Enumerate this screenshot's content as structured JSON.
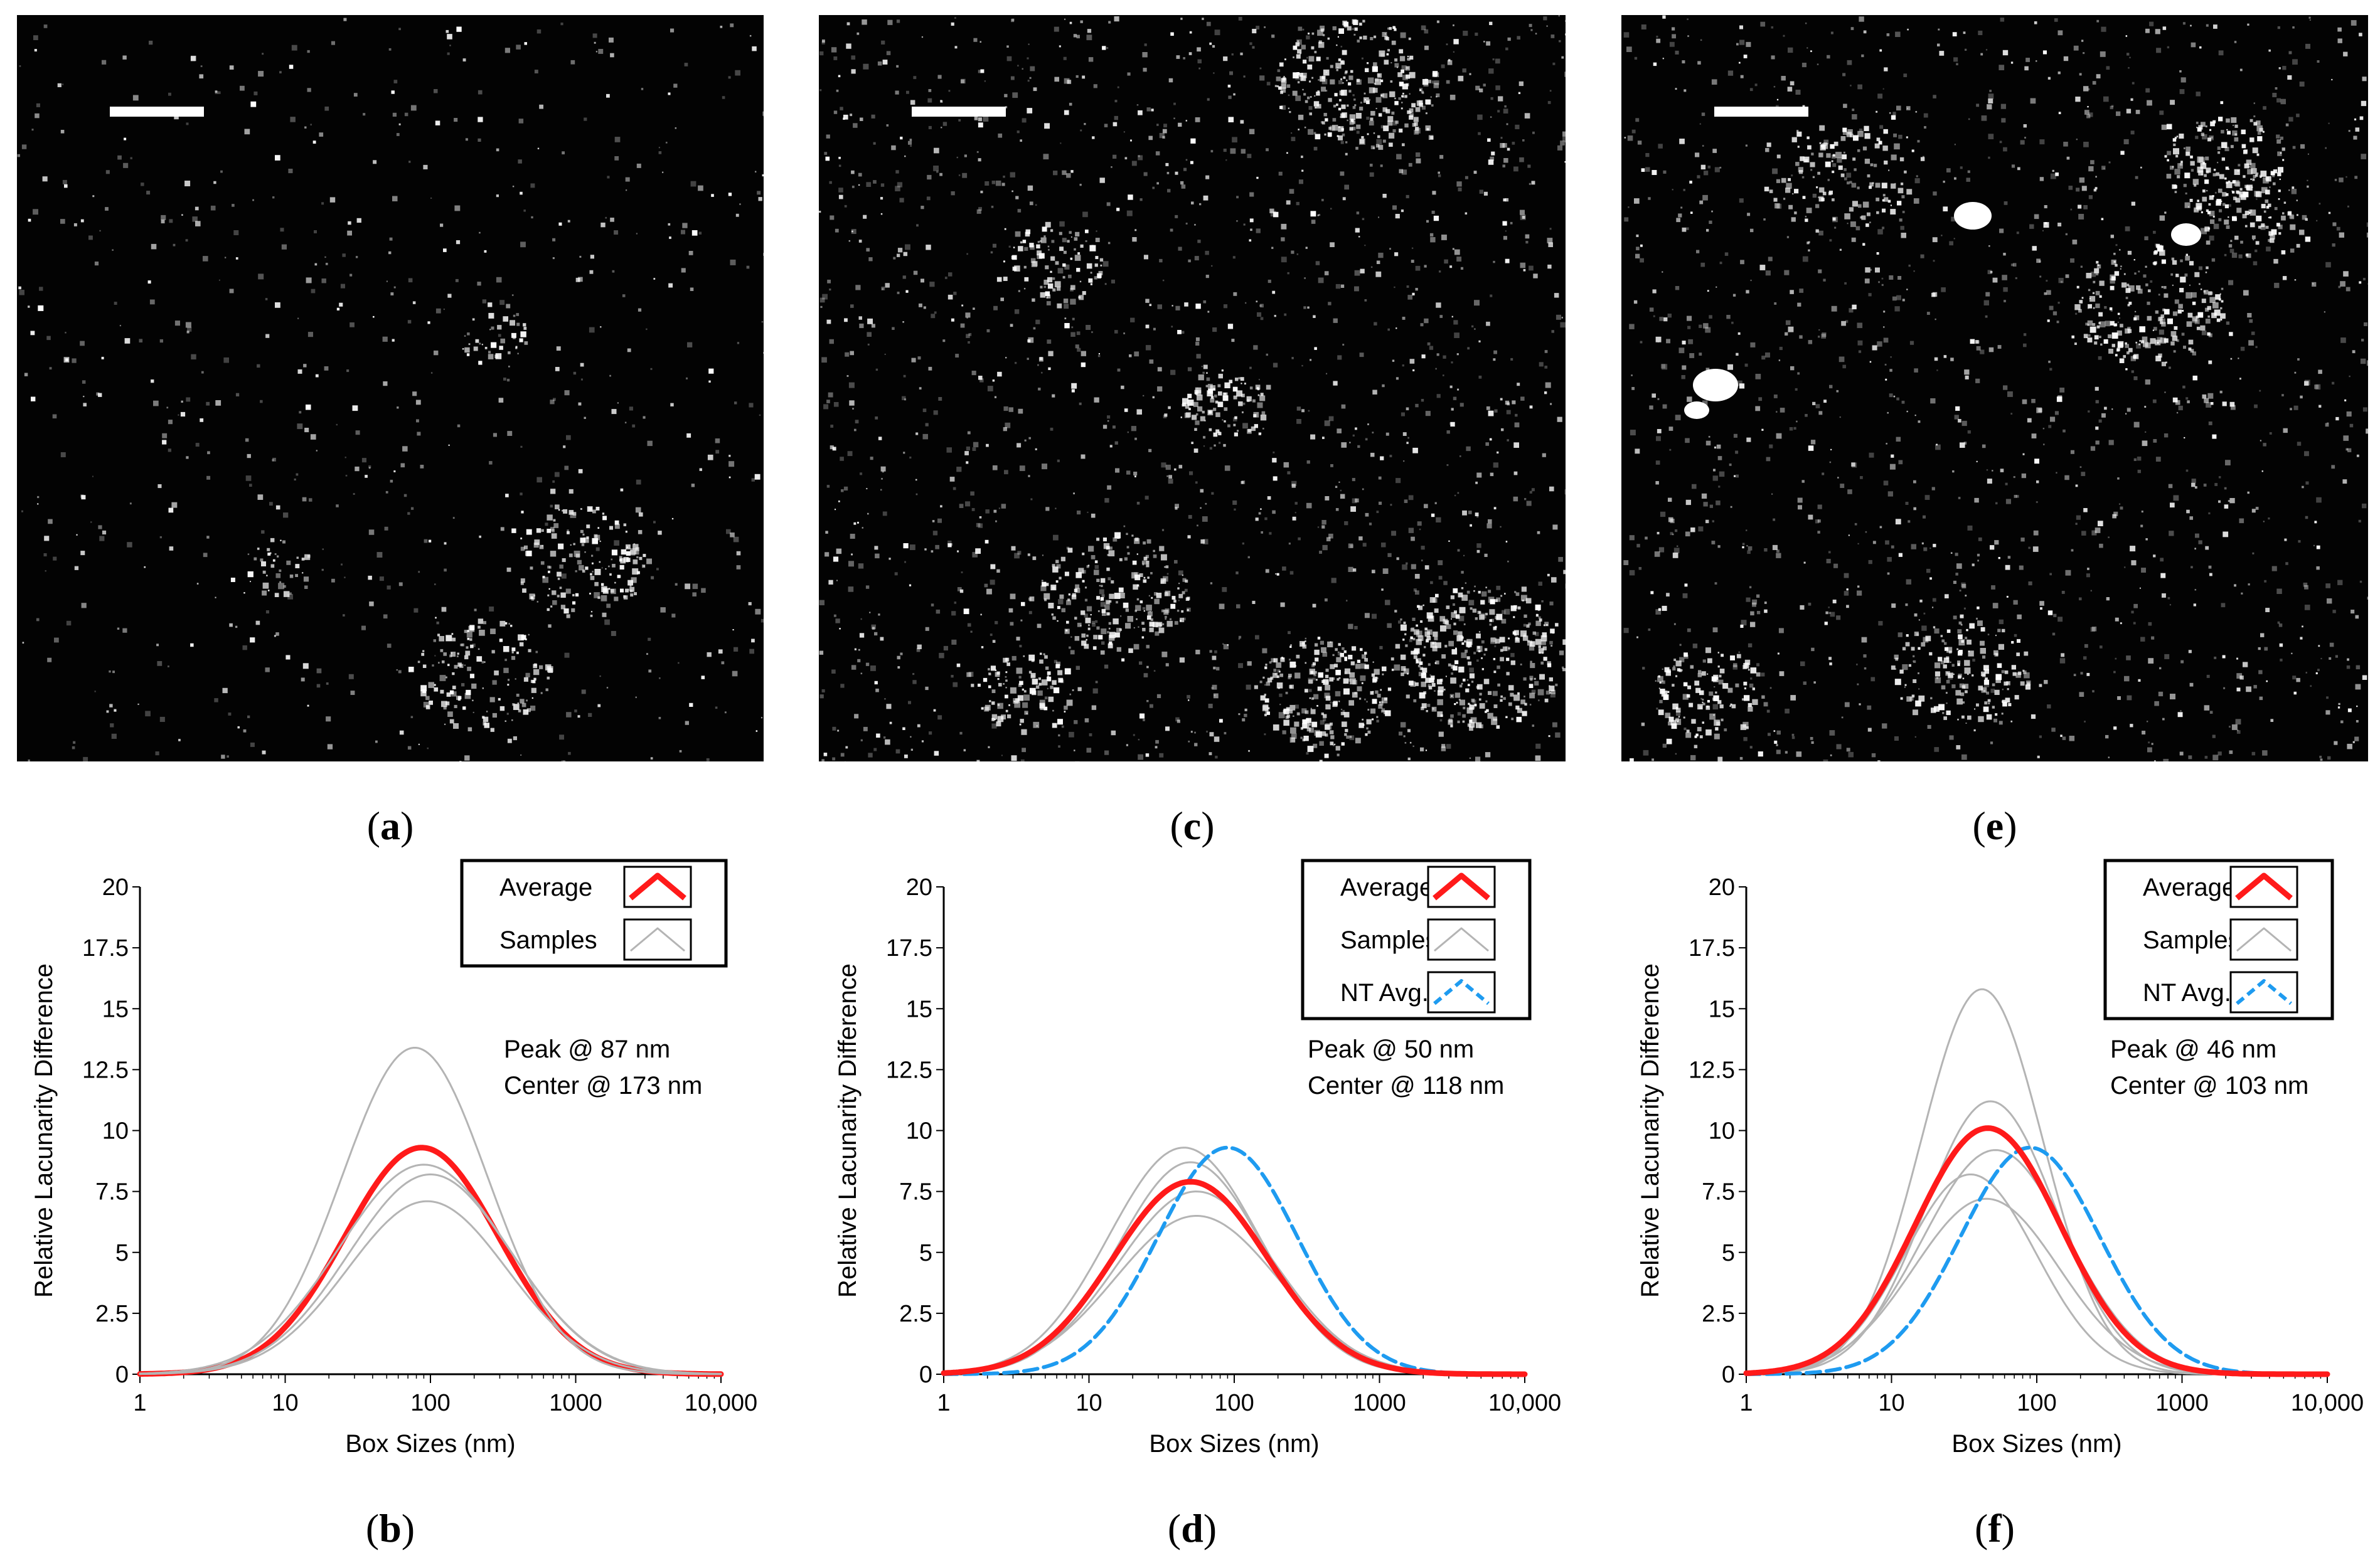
{
  "panels": {
    "a": {
      "label": "a"
    },
    "b": {
      "label": "b"
    },
    "c": {
      "label": "c"
    },
    "d": {
      "label": "d"
    },
    "e": {
      "label": "e"
    },
    "f": {
      "label": "f"
    }
  },
  "colors": {
    "average": "#ff1a1a",
    "samples": "#b4b4b4",
    "nt_avg": "#1e9bf0",
    "micrograph_bg": "#030303",
    "scale_bar": "#ffffff"
  },
  "chart_data": [
    {
      "type": "line",
      "panel": "b",
      "xscale": "log",
      "xlim": [
        1,
        10000
      ],
      "ylim": [
        0,
        20
      ],
      "xticks": [
        "1",
        "10",
        "100",
        "1000",
        "10,000"
      ],
      "yticks": [
        "0",
        "2.5",
        "5",
        "7.5",
        "10",
        "12.5",
        "15",
        "17.5",
        "20"
      ],
      "xlabel": "Box Sizes (nm)",
      "ylabel": "Relative Lacunarity Difference",
      "legend": [
        {
          "name": "Average",
          "style": "average"
        },
        {
          "name": "Samples",
          "style": "samples"
        }
      ],
      "annotations": [
        "Peak @ 87 nm",
        "Center @ 173 nm"
      ],
      "series": [
        {
          "name": "Average",
          "style": "average",
          "peak_x": 87,
          "peak_y": 9.3,
          "width": 0.53
        },
        {
          "name": "Samples",
          "style": "samples",
          "peak_x": 78,
          "peak_y": 13.4,
          "width": 0.5
        },
        {
          "name": "Samples",
          "style": "samples",
          "peak_x": 90,
          "peak_y": 8.6,
          "width": 0.58
        },
        {
          "name": "Samples",
          "style": "samples",
          "peak_x": 100,
          "peak_y": 8.2,
          "width": 0.56
        },
        {
          "name": "Samples",
          "style": "samples",
          "peak_x": 95,
          "peak_y": 7.1,
          "width": 0.55
        }
      ]
    },
    {
      "type": "line",
      "panel": "d",
      "xscale": "log",
      "xlim": [
        1,
        10000
      ],
      "ylim": [
        0,
        20
      ],
      "xticks": [
        "1",
        "10",
        "100",
        "1000",
        "10,000"
      ],
      "yticks": [
        "0",
        "2.5",
        "5",
        "7.5",
        "10",
        "12.5",
        "15",
        "17.5",
        "20"
      ],
      "xlabel": "Box Sizes (nm)",
      "ylabel": "Relative Lacunarity Difference",
      "legend": [
        {
          "name": "Average",
          "style": "average"
        },
        {
          "name": "Samples",
          "style": "samples"
        },
        {
          "name": "NT Avg.",
          "style": "nt"
        }
      ],
      "annotations": [
        "Peak @ 50 nm",
        "Center @ 118 nm"
      ],
      "series": [
        {
          "name": "Samples",
          "style": "samples",
          "peak_x": 45,
          "peak_y": 9.3,
          "width": 0.52
        },
        {
          "name": "Samples",
          "style": "samples",
          "peak_x": 50,
          "peak_y": 8.7,
          "width": 0.5
        },
        {
          "name": "Samples",
          "style": "samples",
          "peak_x": 55,
          "peak_y": 7.5,
          "width": 0.54
        },
        {
          "name": "Samples",
          "style": "samples",
          "peak_x": 55,
          "peak_y": 6.5,
          "width": 0.56
        },
        {
          "name": "NT Avg.",
          "style": "nt",
          "peak_x": 90,
          "peak_y": 9.3,
          "width": 0.48
        },
        {
          "name": "Average",
          "style": "average",
          "peak_x": 50,
          "peak_y": 7.9,
          "width": 0.53
        }
      ]
    },
    {
      "type": "line",
      "panel": "f",
      "xscale": "log",
      "xlim": [
        1,
        10000
      ],
      "ylim": [
        0,
        20
      ],
      "xticks": [
        "1",
        "10",
        "100",
        "1000",
        "10,000"
      ],
      "yticks": [
        "0",
        "2.5",
        "5",
        "7.5",
        "10",
        "12.5",
        "15",
        "17.5",
        "20"
      ],
      "xlabel": "Box Sizes (nm)",
      "ylabel": "Relative Lacunarity Difference",
      "legend": [
        {
          "name": "Average",
          "style": "average"
        },
        {
          "name": "Samples",
          "style": "samples"
        },
        {
          "name": "NT Avg.",
          "style": "nt"
        }
      ],
      "annotations": [
        "Peak @ 46 nm",
        "Center @ 103 nm"
      ],
      "series": [
        {
          "name": "Samples",
          "style": "samples",
          "peak_x": 42,
          "peak_y": 15.8,
          "width": 0.42
        },
        {
          "name": "Samples",
          "style": "samples",
          "peak_x": 48,
          "peak_y": 11.2,
          "width": 0.45
        },
        {
          "name": "Samples",
          "style": "samples",
          "peak_x": 52,
          "peak_y": 9.2,
          "width": 0.5
        },
        {
          "name": "Samples",
          "style": "samples",
          "peak_x": 35,
          "peak_y": 8.2,
          "width": 0.45
        },
        {
          "name": "Samples",
          "style": "samples",
          "peak_x": 45,
          "peak_y": 7.2,
          "width": 0.5
        },
        {
          "name": "NT Avg.",
          "style": "nt",
          "peak_x": 90,
          "peak_y": 9.3,
          "width": 0.48
        },
        {
          "name": "Average",
          "style": "average",
          "peak_x": 46,
          "peak_y": 10.1,
          "width": 0.5
        }
      ]
    }
  ]
}
